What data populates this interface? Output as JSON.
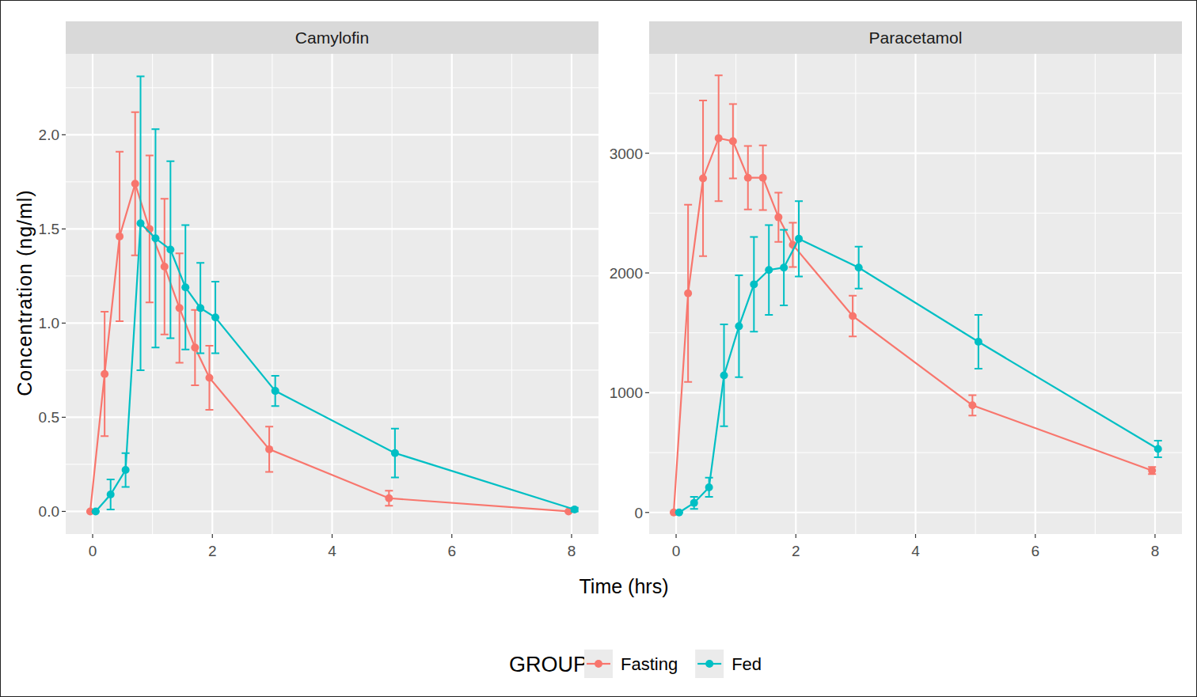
{
  "chart_data": {
    "type": "line",
    "x_label": "Time (hrs)",
    "y_label": "Concentration (ng/ml)",
    "legend_title": "GROUP",
    "legend": "bottom",
    "grid": true,
    "marker": "circle",
    "panels": [
      {
        "title": "Camylofin",
        "xlim": [
          -0.45,
          8.45
        ],
        "ylim": [
          -0.12,
          2.43
        ],
        "xticks": [
          0,
          2,
          4,
          6,
          8
        ],
        "yticks": [
          {
            "value": 0,
            "label": "0.0"
          },
          0.5,
          {
            "value": 1,
            "label": "1.0"
          },
          1.5,
          {
            "value": 2,
            "label": "2.0"
          }
        ],
        "series": [
          {
            "name": "Fasting",
            "color": "#F8766D",
            "x": [
              -0.04,
              0.2,
              0.45,
              0.71,
              0.95,
              1.2,
              1.45,
              1.71,
              1.95,
              2.95,
              4.95,
              7.95
            ],
            "values": [
              0,
              0.73,
              1.46,
              1.74,
              1.5,
              1.3,
              1.08,
              0.87,
              0.71,
              0.33,
              0.07,
              0
            ],
            "errors": [
              0,
              0.33,
              0.45,
              0.38,
              0.39,
              0.36,
              0.29,
              0.2,
              0.17,
              0.12,
              0.04,
              0
            ]
          },
          {
            "name": "Fed",
            "color": "#00BFC4",
            "x": [
              0.05,
              0.3,
              0.55,
              0.8,
              1.05,
              1.3,
              1.55,
              1.8,
              2.05,
              3.05,
              5.05,
              8.05
            ],
            "values": [
              0,
              0.09,
              0.22,
              1.53,
              1.45,
              1.39,
              1.19,
              1.08,
              1.03,
              0.64,
              0.31,
              0.01
            ],
            "errors": [
              0,
              0.08,
              0.09,
              0.78,
              0.58,
              0.47,
              0.33,
              0.24,
              0.19,
              0.08,
              0.13,
              0.01
            ]
          }
        ]
      },
      {
        "title": "Paracetamol",
        "xlim": [
          -0.45,
          8.45
        ],
        "ylim": [
          -180,
          3830
        ],
        "xticks": [
          0,
          2,
          4,
          6,
          8
        ],
        "yticks": [
          0,
          1000,
          2000,
          3000
        ],
        "series": [
          {
            "name": "Fasting",
            "color": "#F8766D",
            "x": [
              -0.04,
              0.2,
              0.45,
              0.71,
              0.95,
              1.2,
              1.45,
              1.71,
              1.95,
              2.95,
              4.95,
              7.95
            ],
            "values": [
              0,
              1830,
              2790,
              3125,
              3100,
              2795,
              2795,
              2465,
              2235,
              1640,
              895,
              350
            ],
            "errors": [
              0,
              740,
              650,
              525,
              310,
              265,
              270,
              205,
              185,
              170,
              85,
              30
            ]
          },
          {
            "name": "Fed",
            "color": "#00BFC4",
            "x": [
              0.05,
              0.3,
              0.55,
              0.8,
              1.05,
              1.3,
              1.55,
              1.8,
              2.05,
              3.05,
              5.05,
              8.05
            ],
            "values": [
              0,
              80,
              210,
              1145,
              1555,
              1905,
              2025,
              2045,
              2285,
              2045,
              1425,
              530
            ],
            "errors": [
              0,
              50,
              80,
              425,
              425,
              395,
              375,
              315,
              315,
              175,
              225,
              70
            ]
          }
        ]
      }
    ]
  }
}
